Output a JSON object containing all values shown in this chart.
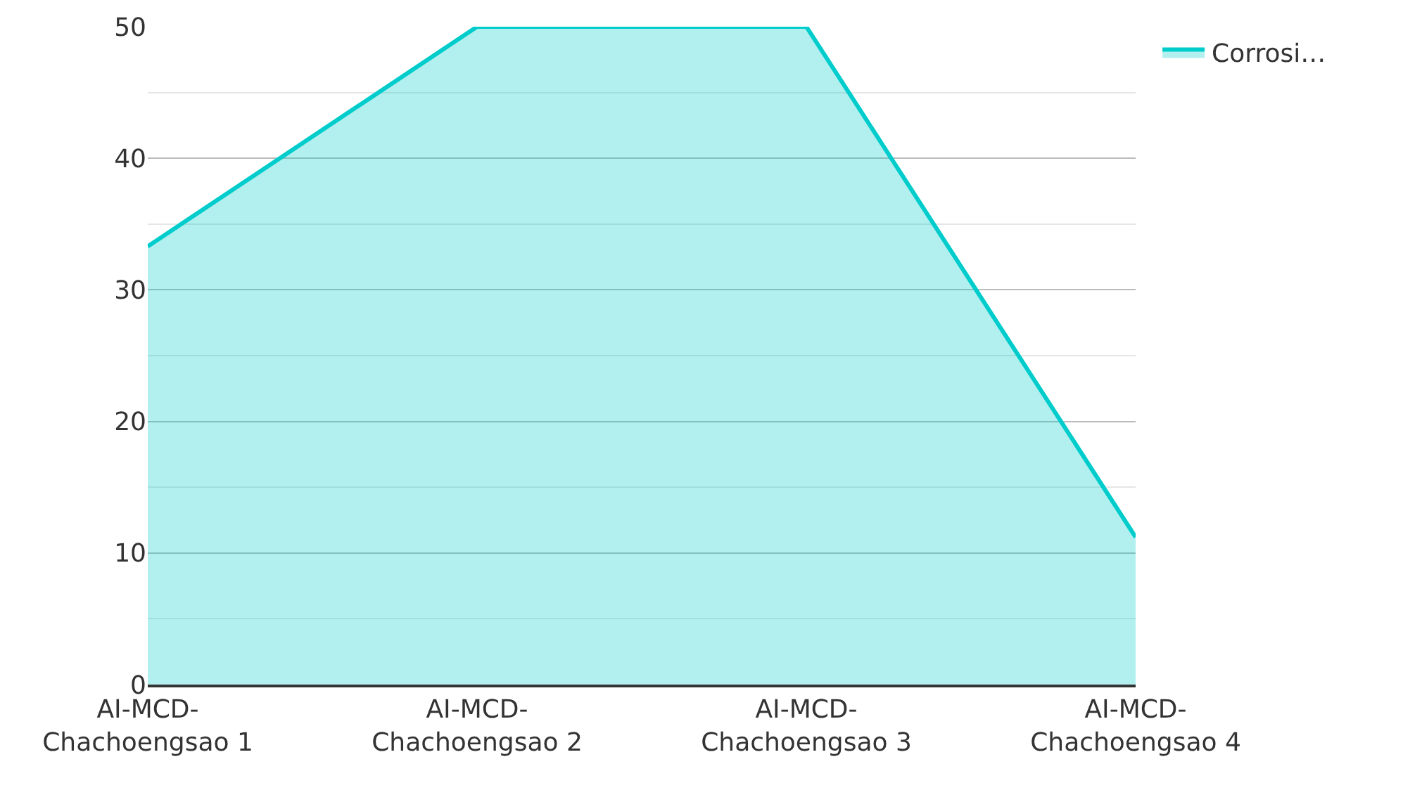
{
  "chart_data": {
    "type": "area",
    "categories": [
      "AI-MCD-Chachoengsao 1",
      "AI-MCD-Chachoengsao 2",
      "AI-MCD-Chachoengsao 3",
      "AI-MCD-Chachoengsao 4"
    ],
    "series": [
      {
        "name": "Corrosi…",
        "color": "#00cccc",
        "values": [
          33.3,
          50,
          50,
          11.2
        ]
      }
    ],
    "ylim": [
      0,
      50
    ],
    "yticks": [
      0,
      10,
      20,
      30,
      40,
      50
    ],
    "grid": "y",
    "legend": "top right",
    "marker": "none",
    "line_style": "solid"
  }
}
